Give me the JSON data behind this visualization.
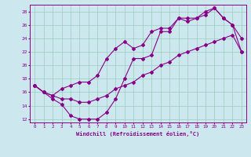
{
  "xlabel": "Windchill (Refroidissement éolien,°C)",
  "bg_color": "#cce8ee",
  "grid_color": "#99ccbb",
  "line_color": "#880088",
  "xlim": [
    -0.5,
    23.5
  ],
  "ylim": [
    11.5,
    29
  ],
  "yticks": [
    12,
    14,
    16,
    18,
    20,
    22,
    24,
    26,
    28
  ],
  "xticks": [
    0,
    1,
    2,
    3,
    4,
    5,
    6,
    7,
    8,
    9,
    10,
    11,
    12,
    13,
    14,
    15,
    16,
    17,
    18,
    19,
    20,
    21,
    22,
    23
  ],
  "line1_x": [
    0,
    1,
    2,
    3,
    4,
    5,
    6,
    7,
    8,
    9,
    10,
    11,
    12,
    13,
    14,
    15,
    16,
    17,
    18,
    19,
    20,
    21,
    22,
    23
  ],
  "line1_y": [
    17.0,
    16.0,
    15.0,
    14.2,
    12.5,
    12.0,
    12.0,
    12.0,
    13.0,
    15.0,
    18.0,
    21.0,
    21.0,
    21.5,
    25.0,
    25.0,
    27.0,
    27.0,
    27.0,
    27.5,
    28.5,
    27.0,
    26.0,
    24.0
  ],
  "line2_x": [
    0,
    1,
    2,
    3,
    4,
    5,
    6,
    7,
    8,
    9,
    10,
    11,
    12,
    13,
    14,
    15,
    16,
    17,
    18,
    19,
    20,
    21,
    22,
    23
  ],
  "line2_y": [
    17.0,
    16.0,
    15.5,
    16.5,
    17.0,
    17.5,
    17.5,
    18.5,
    21.0,
    22.5,
    23.5,
    22.5,
    23.0,
    25.0,
    25.5,
    25.5,
    27.0,
    26.5,
    27.0,
    28.0,
    28.5,
    27.0,
    26.0,
    22.0
  ],
  "line3_x": [
    0,
    1,
    2,
    3,
    4,
    5,
    6,
    7,
    8,
    9,
    10,
    11,
    12,
    13,
    14,
    15,
    16,
    17,
    18,
    19,
    20,
    21,
    22,
    23
  ],
  "line3_y": [
    17.0,
    16.0,
    15.5,
    15.0,
    15.0,
    14.5,
    14.5,
    15.0,
    15.5,
    16.5,
    17.0,
    17.5,
    18.5,
    19.0,
    20.0,
    20.5,
    21.5,
    22.0,
    22.5,
    23.0,
    23.5,
    24.0,
    24.5,
    22.0
  ]
}
